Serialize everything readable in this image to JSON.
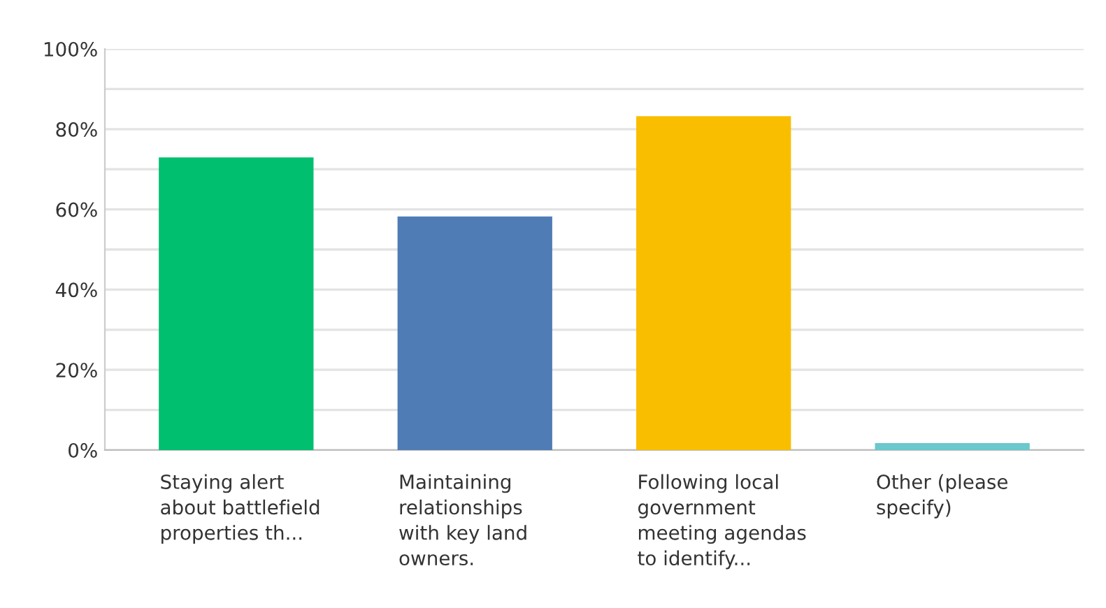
{
  "chart_data": {
    "type": "bar",
    "categories": [
      "Staying alert about battlefield properties th...",
      "Maintaining relationships with key land owners.",
      "Following local government meeting agendas to identify...",
      "Other (please specify)"
    ],
    "values": [
      72.7,
      58,
      83,
      1.5
    ],
    "colors": [
      "#00bf6f",
      "#507cb6",
      "#f9be00",
      "#6bc8cd"
    ],
    "ylim": [
      0,
      100
    ],
    "yticks": [
      {
        "value": 0,
        "label": "0%"
      },
      {
        "value": 10,
        "label": null
      },
      {
        "value": 20,
        "label": "20%"
      },
      {
        "value": 30,
        "label": null
      },
      {
        "value": 40,
        "label": "40%"
      },
      {
        "value": 50,
        "label": null
      },
      {
        "value": 60,
        "label": "60%"
      },
      {
        "value": 70,
        "label": null
      },
      {
        "value": 80,
        "label": "80%"
      },
      {
        "value": 90,
        "label": null
      },
      {
        "value": 100,
        "label": "100%"
      }
    ],
    "grid": "y"
  }
}
